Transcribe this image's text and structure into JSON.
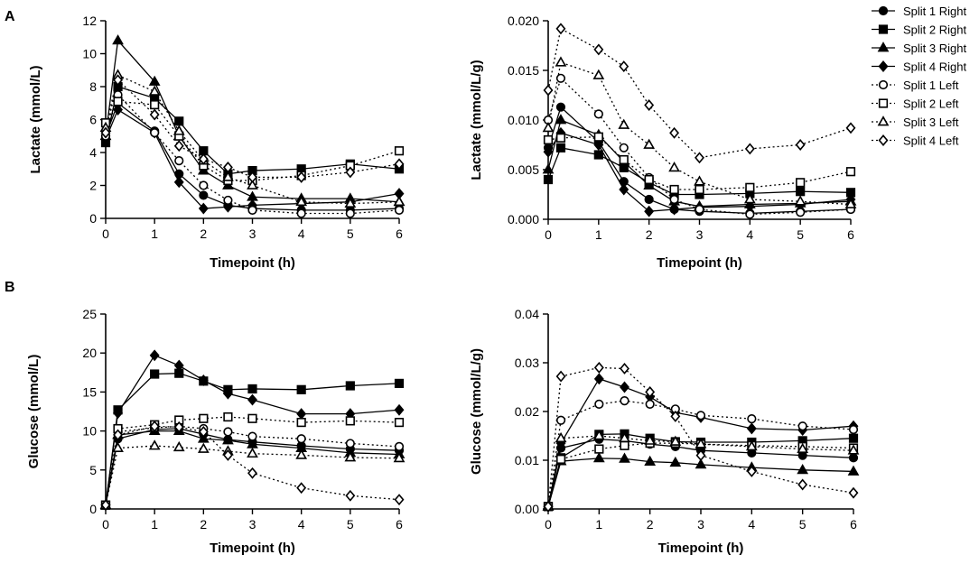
{
  "panel_labels": {
    "a": "A",
    "b": "B"
  },
  "legend": [
    {
      "name": "Split 1 Right",
      "marker": "circle",
      "fill": "#000000",
      "dash": "solid"
    },
    {
      "name": "Split 2 Right",
      "marker": "square",
      "fill": "#000000",
      "dash": "solid"
    },
    {
      "name": "Split 3 Right",
      "marker": "triangle",
      "fill": "#000000",
      "dash": "solid"
    },
    {
      "name": "Split 4 Right",
      "marker": "diamond",
      "fill": "#000000",
      "dash": "solid"
    },
    {
      "name": "Split 1 Left",
      "marker": "circle",
      "fill": "#ffffff",
      "dash": "dotted"
    },
    {
      "name": "Split 2 Left",
      "marker": "square",
      "fill": "#ffffff",
      "dash": "dotted"
    },
    {
      "name": "Split 3 Left",
      "marker": "triangle",
      "fill": "#ffffff",
      "dash": "dotted"
    },
    {
      "name": "Split 4 Left",
      "marker": "diamond",
      "fill": "#ffffff",
      "dash": "dotted"
    }
  ],
  "chart_data": [
    {
      "id": "lactate-abs",
      "type": "line",
      "title": "",
      "xlabel": "Timepoint (h)",
      "ylabel": "Lactate (mmol/L)",
      "xlim": [
        0,
        6
      ],
      "ylim": [
        0,
        12
      ],
      "xticks": [
        "0",
        "1",
        "2",
        "3",
        "4",
        "5",
        "6"
      ],
      "yticks": [
        "0",
        "2",
        "4",
        "6",
        "8",
        "10",
        "12"
      ],
      "x": [
        0,
        0.25,
        1,
        1.5,
        2,
        2.5,
        3,
        4,
        5,
        6
      ],
      "series": [
        {
          "name": "Split 1 Right",
          "values": [
            5.0,
            7.0,
            5.3,
            2.7,
            1.4,
            0.8,
            0.6,
            0.5,
            0.5,
            0.6
          ]
        },
        {
          "name": "Split 2 Right",
          "values": [
            4.6,
            8.0,
            7.3,
            5.9,
            4.1,
            2.7,
            2.9,
            3.0,
            3.3,
            3.0
          ]
        },
        {
          "name": "Split 3 Right",
          "values": [
            5.0,
            10.8,
            8.3,
            5.0,
            2.9,
            2.0,
            1.3,
            1.2,
            1.2,
            1.0
          ]
        },
        {
          "name": "Split 4 Right",
          "values": [
            4.8,
            6.6,
            5.2,
            2.2,
            0.6,
            0.7,
            0.8,
            0.9,
            1.0,
            1.5
          ]
        },
        {
          "name": "Split 1 Left",
          "values": [
            5.0,
            7.5,
            5.2,
            3.5,
            2.0,
            1.1,
            0.5,
            0.3,
            0.3,
            0.5
          ]
        },
        {
          "name": "Split 2 Left",
          "values": [
            5.8,
            7.1,
            6.9,
            5.0,
            3.2,
            2.3,
            2.3,
            2.6,
            3.2,
            4.1
          ]
        },
        {
          "name": "Split 3 Left",
          "values": [
            5.5,
            8.7,
            7.7,
            5.3,
            3.5,
            2.5,
            2.0,
            1.0,
            0.9,
            1.0
          ]
        },
        {
          "name": "Split 4 Left",
          "values": [
            5.2,
            8.4,
            6.3,
            4.4,
            3.6,
            3.1,
            2.5,
            2.5,
            2.8,
            3.3
          ]
        }
      ]
    },
    {
      "id": "lactate-norm",
      "type": "line",
      "title": "",
      "xlabel": "Timepoint (h)",
      "ylabel": "Lactate (mmol/L/g)",
      "xlim": [
        0,
        6
      ],
      "ylim": [
        0,
        0.02
      ],
      "xticks": [
        "0",
        "1",
        "2",
        "3",
        "4",
        "5",
        "6"
      ],
      "yticks": [
        "0.000",
        "0.005",
        "0.010",
        "0.015",
        "0.020"
      ],
      "x": [
        0,
        0.25,
        1,
        1.5,
        2,
        2.5,
        3,
        4,
        5,
        6
      ],
      "series": [
        {
          "name": "Split 1 Right",
          "values": [
            0.0072,
            0.0113,
            0.0078,
            0.0038,
            0.002,
            0.001,
            0.0008,
            0.0006,
            0.0008,
            0.001
          ]
        },
        {
          "name": "Split 2 Right",
          "values": [
            0.004,
            0.0072,
            0.0065,
            0.0052,
            0.0037,
            0.0025,
            0.0025,
            0.0026,
            0.0028,
            0.0027
          ]
        },
        {
          "name": "Split 3 Right",
          "values": [
            0.005,
            0.01,
            0.0085,
            0.0058,
            0.0034,
            0.0018,
            0.0013,
            0.0015,
            0.0016,
            0.0018
          ]
        },
        {
          "name": "Split 4 Right",
          "values": [
            0.0068,
            0.0087,
            0.0075,
            0.003,
            0.0008,
            0.001,
            0.0012,
            0.0013,
            0.0015,
            0.002
          ]
        },
        {
          "name": "Split 1 Left",
          "values": [
            0.01,
            0.0142,
            0.0106,
            0.0072,
            0.0042,
            0.002,
            0.001,
            0.0005,
            0.0007,
            0.001
          ]
        },
        {
          "name": "Split 2 Left",
          "values": [
            0.008,
            0.0082,
            0.0083,
            0.006,
            0.004,
            0.003,
            0.003,
            0.0032,
            0.0037,
            0.0048
          ]
        },
        {
          "name": "Split 3 Left",
          "values": [
            0.0092,
            0.0158,
            0.0145,
            0.0095,
            0.0075,
            0.0052,
            0.0038,
            0.002,
            0.0018,
            0.0015
          ]
        },
        {
          "name": "Split 4 Left",
          "values": [
            0.013,
            0.0192,
            0.0171,
            0.0154,
            0.0115,
            0.0087,
            0.0062,
            0.0071,
            0.0075,
            0.0092
          ]
        }
      ]
    },
    {
      "id": "glucose-abs",
      "type": "line",
      "title": "",
      "xlabel": "Timepoint (h)",
      "ylabel": "Glucose (mmol/L)",
      "xlim": [
        0,
        6
      ],
      "ylim": [
        0,
        25
      ],
      "xticks": [
        "0",
        "1",
        "2",
        "3",
        "4",
        "5",
        "6"
      ],
      "yticks": [
        "0",
        "5",
        "10",
        "15",
        "20",
        "25"
      ],
      "x": [
        0,
        0.25,
        1,
        1.5,
        2,
        2.5,
        3,
        4,
        5,
        6
      ],
      "series": [
        {
          "name": "Split 1 Right",
          "values": [
            0.5,
            9.0,
            10.2,
            10.3,
            9.6,
            8.9,
            8.6,
            8.1,
            7.7,
            7.5
          ]
        },
        {
          "name": "Split 2 Right",
          "values": [
            0.5,
            12.7,
            17.3,
            17.4,
            16.4,
            15.3,
            15.4,
            15.3,
            15.8,
            16.1
          ]
        },
        {
          "name": "Split 3 Right",
          "values": [
            0.5,
            9.5,
            10.0,
            10.0,
            9.0,
            8.8,
            8.3,
            7.8,
            7.2,
            7.0
          ]
        },
        {
          "name": "Split 4 Right",
          "values": [
            0.5,
            12.3,
            19.7,
            18.4,
            16.5,
            14.8,
            14.0,
            12.2,
            12.2,
            12.7
          ]
        },
        {
          "name": "Split 1 Left",
          "values": [
            0.5,
            9.9,
            10.4,
            10.6,
            10.3,
            9.9,
            9.3,
            9.0,
            8.4,
            8.0
          ]
        },
        {
          "name": "Split 2 Left",
          "values": [
            0.5,
            10.3,
            10.8,
            11.4,
            11.6,
            11.8,
            11.6,
            11.1,
            11.3,
            11.1
          ]
        },
        {
          "name": "Split 3 Left",
          "values": [
            0.5,
            7.8,
            8.1,
            7.9,
            7.7,
            7.4,
            7.1,
            6.9,
            6.6,
            6.5
          ]
        },
        {
          "name": "Split 4 Left",
          "values": [
            0.5,
            9.5,
            10.6,
            10.5,
            9.9,
            6.9,
            4.6,
            2.7,
            1.7,
            1.2
          ]
        }
      ]
    },
    {
      "id": "glucose-norm",
      "type": "line",
      "title": "",
      "xlabel": "Timepoint (h)",
      "ylabel": "Glucose (mmol/L/g)",
      "xlim": [
        0,
        6
      ],
      "ylim": [
        0,
        0.04
      ],
      "xticks": [
        "0",
        "1",
        "2",
        "3",
        "4",
        "5",
        "6"
      ],
      "yticks": [
        "0.00",
        "0.01",
        "0.02",
        "0.03",
        "0.04"
      ],
      "x": [
        0,
        0.25,
        1,
        1.5,
        2,
        2.5,
        3,
        4,
        5,
        6
      ],
      "series": [
        {
          "name": "Split 1 Right",
          "values": [
            0.0005,
            0.0125,
            0.0143,
            0.014,
            0.0133,
            0.0128,
            0.012,
            0.0115,
            0.011,
            0.0105
          ]
        },
        {
          "name": "Split 2 Right",
          "values": [
            0.0005,
            0.0105,
            0.0153,
            0.0154,
            0.0145,
            0.0138,
            0.0137,
            0.0137,
            0.014,
            0.0145
          ]
        },
        {
          "name": "Split 3 Right",
          "values": [
            0.0005,
            0.0098,
            0.0104,
            0.0103,
            0.0097,
            0.0095,
            0.0091,
            0.0085,
            0.008,
            0.0077
          ]
        },
        {
          "name": "Split 4 Right",
          "values": [
            0.0005,
            0.0135,
            0.0267,
            0.025,
            0.023,
            0.0198,
            0.0188,
            0.0165,
            0.0162,
            0.017
          ]
        },
        {
          "name": "Split 1 Left",
          "values": [
            0.0005,
            0.0182,
            0.0215,
            0.0222,
            0.0215,
            0.0205,
            0.0192,
            0.0185,
            0.017,
            0.0163
          ]
        },
        {
          "name": "Split 2 Left",
          "values": [
            0.0005,
            0.0102,
            0.0123,
            0.013,
            0.0135,
            0.0135,
            0.0133,
            0.013,
            0.0128,
            0.0125
          ]
        },
        {
          "name": "Split 3 Left",
          "values": [
            0.0005,
            0.0145,
            0.015,
            0.0145,
            0.014,
            0.0138,
            0.0133,
            0.0128,
            0.0123,
            0.012
          ]
        },
        {
          "name": "Split 4 Left",
          "values": [
            0.0005,
            0.0272,
            0.029,
            0.0288,
            0.024,
            0.019,
            0.011,
            0.0077,
            0.005,
            0.0033
          ]
        }
      ]
    }
  ]
}
